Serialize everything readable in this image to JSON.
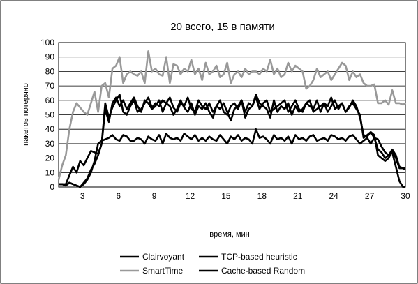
{
  "chart_data": {
    "type": "line",
    "title": "20 всего, 15 в памяти",
    "xlabel": "время, мин",
    "ylabel": "пакетов потеряно",
    "ylim": [
      0,
      100
    ],
    "yticks": [
      0,
      10,
      20,
      30,
      40,
      50,
      60,
      70,
      80,
      90,
      100
    ],
    "xlim": [
      1,
      30
    ],
    "xticks": [
      3,
      6,
      9,
      12,
      15,
      18,
      21,
      24,
      27,
      30
    ],
    "grid": true,
    "legend_position": "bottom",
    "legend_entries": [
      "Clairvoyant",
      "TCP-based heuristic",
      "SmartTime",
      "Cache-based Random"
    ],
    "series": [
      {
        "name": "Clairvoyant",
        "color": "#000000",
        "x": [
          1.0,
          1.3,
          1.6,
          1.9,
          2.2,
          2.5,
          2.8,
          3.1,
          3.4,
          3.7,
          4.0,
          4.3,
          4.6,
          4.9,
          5.2,
          5.5,
          5.8,
          6.1,
          6.4,
          6.7,
          7.0,
          7.3,
          7.6,
          7.9,
          8.2,
          8.5,
          8.8,
          9.1,
          9.4,
          9.7,
          10.0,
          10.3,
          10.6,
          10.9,
          11.2,
          11.5,
          11.8,
          12.1,
          12.4,
          12.7,
          13.0,
          13.3,
          13.6,
          13.9,
          14.2,
          14.5,
          14.8,
          15.1,
          15.4,
          15.7,
          16.0,
          16.3,
          16.6,
          16.9,
          17.2,
          17.5,
          17.8,
          18.1,
          18.4,
          18.7,
          19.0,
          19.3,
          19.6,
          19.9,
          20.2,
          20.5,
          20.8,
          21.1,
          21.4,
          21.7,
          22.0,
          22.3,
          22.6,
          22.9,
          23.2,
          23.5,
          23.8,
          24.1,
          24.4,
          24.7,
          25.0,
          25.3,
          25.6,
          25.9,
          26.2,
          26.5,
          26.8,
          27.1,
          27.4,
          27.7,
          28.0,
          28.3,
          28.6,
          28.9,
          29.2,
          29.5,
          29.8,
          30.0
        ],
        "values": [
          2,
          2,
          1,
          3,
          2,
          1,
          0,
          2,
          5,
          10,
          18,
          30,
          32,
          33,
          34,
          36,
          33,
          32,
          36,
          35,
          32,
          32,
          34,
          33,
          30,
          35,
          33,
          32,
          36,
          30,
          37,
          34,
          33,
          34,
          32,
          37,
          35,
          33,
          36,
          32,
          34,
          32,
          35,
          33,
          32,
          36,
          33,
          30,
          35,
          33,
          36,
          32,
          34,
          33,
          30,
          40,
          34,
          35,
          33,
          30,
          36,
          33,
          34,
          32,
          35,
          30,
          36,
          33,
          34,
          32,
          35,
          36,
          32,
          33,
          34,
          32,
          36,
          35,
          33,
          34,
          32,
          35,
          36,
          33,
          30,
          32,
          34,
          30,
          34,
          33,
          28,
          24,
          22,
          24,
          14,
          4,
          0,
          0
        ]
      },
      {
        "name": "TCP-based heuristic",
        "color": "#000000",
        "x": [
          1.0,
          1.3,
          1.6,
          1.9,
          2.2,
          2.5,
          2.8,
          3.1,
          3.4,
          3.7,
          4.0,
          4.3,
          4.6,
          4.9,
          5.2,
          5.5,
          5.8,
          6.1,
          6.4,
          6.7,
          7.0,
          7.3,
          7.6,
          7.9,
          8.2,
          8.5,
          8.8,
          9.1,
          9.4,
          9.7,
          10.0,
          10.3,
          10.6,
          10.9,
          11.2,
          11.5,
          11.8,
          12.1,
          12.4,
          12.7,
          13.0,
          13.3,
          13.6,
          13.9,
          14.2,
          14.5,
          14.8,
          15.1,
          15.4,
          15.7,
          16.0,
          16.3,
          16.6,
          16.9,
          17.2,
          17.5,
          17.8,
          18.1,
          18.4,
          18.7,
          19.0,
          19.3,
          19.6,
          19.9,
          20.2,
          20.5,
          20.8,
          21.1,
          21.4,
          21.7,
          22.0,
          22.3,
          22.6,
          22.9,
          23.2,
          23.5,
          23.8,
          24.1,
          24.4,
          24.7,
          25.0,
          25.3,
          25.6,
          25.9,
          26.2,
          26.5,
          26.8,
          27.1,
          27.4,
          27.7,
          28.0,
          28.3,
          28.6,
          28.9,
          29.2,
          29.5,
          29.8,
          30.0
        ],
        "values": [
          2,
          2,
          2,
          8,
          14,
          10,
          18,
          15,
          20,
          25,
          24,
          23,
          30,
          58,
          48,
          55,
          60,
          64,
          52,
          50,
          56,
          60,
          52,
          54,
          58,
          62,
          55,
          58,
          56,
          60,
          58,
          62,
          55,
          52,
          58,
          56,
          62,
          54,
          52,
          60,
          56,
          54,
          58,
          52,
          56,
          60,
          52,
          50,
          56,
          58,
          54,
          60,
          52,
          58,
          56,
          62,
          54,
          58,
          60,
          52,
          54,
          56,
          58,
          60,
          52,
          56,
          60,
          54,
          52,
          58,
          56,
          54,
          60,
          52,
          58,
          56,
          62,
          54,
          56,
          58,
          52,
          55,
          60,
          56,
          48,
          36,
          35,
          38,
          36,
          22,
          20,
          18,
          20,
          25,
          20,
          13,
          13,
          13
        ]
      },
      {
        "name": "SmartTime",
        "color": "#999999",
        "x": [
          1.0,
          1.3,
          1.6,
          1.9,
          2.2,
          2.5,
          2.8,
          3.1,
          3.4,
          3.7,
          4.0,
          4.3,
          4.6,
          4.9,
          5.2,
          5.5,
          5.8,
          6.1,
          6.4,
          6.7,
          7.0,
          7.3,
          7.6,
          7.9,
          8.2,
          8.5,
          8.8,
          9.1,
          9.4,
          9.7,
          10.0,
          10.3,
          10.6,
          10.9,
          11.2,
          11.5,
          11.8,
          12.1,
          12.4,
          12.7,
          13.0,
          13.3,
          13.6,
          13.9,
          14.2,
          14.5,
          14.8,
          15.1,
          15.4,
          15.7,
          16.0,
          16.3,
          16.6,
          16.9,
          17.2,
          17.5,
          17.8,
          18.1,
          18.4,
          18.7,
          19.0,
          19.3,
          19.6,
          19.9,
          20.2,
          20.5,
          20.8,
          21.1,
          21.4,
          21.7,
          22.0,
          22.3,
          22.6,
          22.9,
          23.2,
          23.5,
          23.8,
          24.1,
          24.4,
          24.7,
          25.0,
          25.3,
          25.6,
          25.9,
          26.2,
          26.5,
          26.8,
          27.1,
          27.4,
          27.7,
          28.0,
          28.3,
          28.6,
          28.9,
          29.2,
          29.5,
          29.8,
          30.0
        ],
        "values": [
          5,
          15,
          22,
          40,
          52,
          58,
          55,
          52,
          50,
          58,
          66,
          52,
          70,
          72,
          62,
          82,
          84,
          90,
          72,
          78,
          80,
          78,
          77,
          80,
          72,
          94,
          80,
          82,
          78,
          77,
          90,
          72,
          85,
          84,
          78,
          82,
          80,
          88,
          78,
          82,
          74,
          86,
          78,
          80,
          84,
          76,
          78,
          86,
          72,
          78,
          80,
          76,
          82,
          78,
          80,
          80,
          78,
          82,
          80,
          88,
          78,
          82,
          76,
          78,
          86,
          80,
          84,
          82,
          80,
          68,
          70,
          74,
          82,
          76,
          78,
          80,
          74,
          78,
          82,
          86,
          84,
          74,
          80,
          76,
          78,
          72,
          70,
          70,
          71,
          58,
          58,
          60,
          57,
          67,
          58,
          58,
          57,
          58
        ]
      },
      {
        "name": "Cache-based Random",
        "color": "#000000",
        "x": [
          1.0,
          1.3,
          1.6,
          1.9,
          2.2,
          2.5,
          2.8,
          3.1,
          3.4,
          3.7,
          4.0,
          4.3,
          4.6,
          4.9,
          5.2,
          5.5,
          5.8,
          6.1,
          6.4,
          6.7,
          7.0,
          7.3,
          7.6,
          7.9,
          8.2,
          8.5,
          8.8,
          9.1,
          9.4,
          9.7,
          10.0,
          10.3,
          10.6,
          10.9,
          11.2,
          11.5,
          11.8,
          12.1,
          12.4,
          12.7,
          13.0,
          13.3,
          13.6,
          13.9,
          14.2,
          14.5,
          14.8,
          15.1,
          15.4,
          15.7,
          16.0,
          16.3,
          16.6,
          16.9,
          17.2,
          17.5,
          17.8,
          18.1,
          18.4,
          18.7,
          19.0,
          19.3,
          19.6,
          19.9,
          20.2,
          20.5,
          20.8,
          21.1,
          21.4,
          21.7,
          22.0,
          22.3,
          22.6,
          22.9,
          23.2,
          23.5,
          23.8,
          24.1,
          24.4,
          24.7,
          25.0,
          25.3,
          25.6,
          25.9,
          26.2,
          26.5,
          26.8,
          27.1,
          27.4,
          27.7,
          28.0,
          28.3,
          28.6,
          28.9,
          29.2,
          29.5,
          29.8,
          30.0
        ],
        "values": [
          2,
          2,
          1,
          3,
          2,
          1,
          0,
          3,
          6,
          12,
          16,
          22,
          30,
          54,
          45,
          58,
          62,
          56,
          60,
          54,
          58,
          62,
          56,
          52,
          60,
          58,
          54,
          56,
          60,
          52,
          58,
          56,
          50,
          54,
          60,
          55,
          52,
          58,
          50,
          56,
          54,
          58,
          52,
          48,
          56,
          54,
          58,
          52,
          46,
          54,
          56,
          60,
          48,
          54,
          56,
          64,
          58,
          56,
          54,
          48,
          60,
          52,
          56,
          54,
          58,
          50,
          56,
          52,
          54,
          58,
          60,
          52,
          54,
          56,
          58,
          52,
          56,
          60,
          54,
          58,
          52,
          56,
          58,
          54,
          50,
          34,
          36,
          38,
          34,
          26,
          24,
          20,
          22,
          26,
          22,
          14,
          13,
          12
        ]
      }
    ]
  }
}
